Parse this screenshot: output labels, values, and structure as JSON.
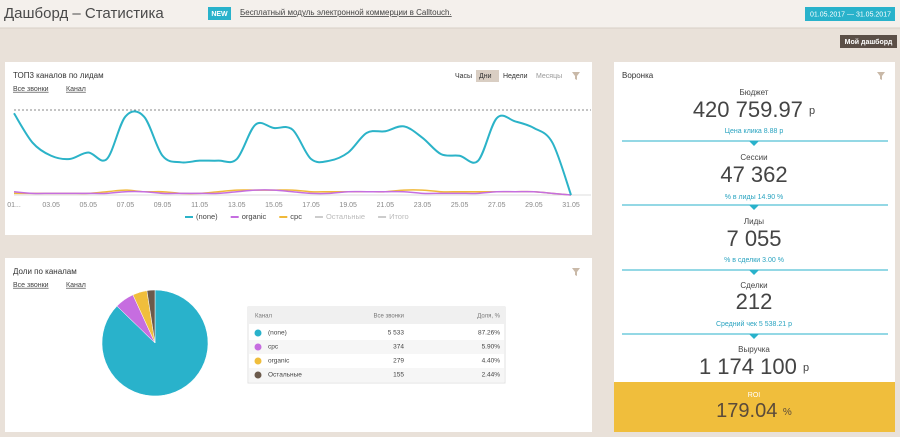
{
  "header": {
    "title": "Дашборд – Статистика",
    "badge": "NEW",
    "news": "Бесплатный модуль электронной коммерции в Calltouch.",
    "date_from": "01.05.2017",
    "date_separator": "—",
    "date_to": "31.05.2017",
    "button": "Мой дашборд"
  },
  "chart_data": [
    {
      "type": "line",
      "title": "ТОП3 каналов по лидам",
      "filters": [
        "Все звонки",
        "Канал"
      ],
      "periods": [
        "Часы",
        "Дни",
        "Недели",
        "Месяцы"
      ],
      "active_period_index": 1,
      "categories": [
        "01...",
        null,
        "03.05",
        null,
        "05.05",
        null,
        "07.05",
        null,
        "09.05",
        null,
        "11.05",
        null,
        "13.05",
        null,
        "15.05",
        null,
        "17.05",
        null,
        "19.05",
        null,
        "21.05",
        null,
        "23.05",
        null,
        "25.05",
        null,
        "27.05",
        null,
        "29.05",
        null,
        "31.05"
      ],
      "ylim": [
        0,
        52
      ],
      "series": [
        {
          "name": "(none)",
          "color": "#2bb3c8",
          "values": [
            50,
            32,
            24,
            22,
            26,
            22,
            48,
            48,
            24,
            20,
            21,
            21,
            22,
            43,
            41,
            40,
            22,
            21,
            26,
            38,
            39,
            42,
            35,
            25,
            24,
            21,
            47,
            45,
            41,
            32,
            0
          ]
        },
        {
          "name": "organic",
          "color": "#c56ee0",
          "values": [
            2,
            1,
            1,
            1,
            1,
            1,
            2,
            2,
            1,
            1,
            1,
            1,
            2,
            3,
            3,
            2,
            1,
            1,
            2,
            2,
            2,
            2,
            1,
            1,
            1,
            1,
            2,
            2,
            2,
            1,
            0
          ]
        },
        {
          "name": "cpc",
          "color": "#f0b93a",
          "values": [
            1,
            1,
            1,
            1,
            1,
            2,
            3,
            2,
            2,
            1,
            1,
            2,
            3,
            3,
            3,
            3,
            2,
            2,
            2,
            2,
            2,
            3,
            3,
            2,
            2,
            2,
            2,
            2,
            2,
            1,
            0
          ]
        }
      ],
      "inactive_legend": [
        "Остальные",
        "Итого"
      ]
    },
    {
      "type": "pie",
      "title": "Доли по каналам",
      "filters": [
        "Все звонки",
        "Канал"
      ],
      "columns": [
        "Канал",
        "Все звонки",
        "Доля, %"
      ],
      "categories": [
        "(none)",
        "cpc",
        "organic",
        "Остальные"
      ],
      "colors": [
        "#29b2cb",
        "#c66de0",
        "#f0be3c",
        "#6b5a4c"
      ],
      "calls": [
        "5 533",
        "374",
        "279",
        "155"
      ],
      "values": [
        87.26,
        5.9,
        4.4,
        2.44
      ],
      "value_labels": [
        "87.26%",
        "5.90%",
        "4.40%",
        "2.44%"
      ]
    }
  ],
  "funnel": {
    "title": "Воронка",
    "steps": [
      {
        "label": "Бюджет",
        "value": "420 759.97",
        "unit": "р",
        "note": "Цена клика 8.88 р"
      },
      {
        "label": "Сессии",
        "value": "47 362",
        "note": "% в лиды 14.90 %"
      },
      {
        "label": "Лиды",
        "value": "7 055",
        "note": "% в сделки 3.00 %"
      },
      {
        "label": "Сделки",
        "value": "212",
        "note": "Средний чек 5 538.21 р"
      },
      {
        "label": "Выручка",
        "value": "1 174 100",
        "unit": "р"
      }
    ],
    "roi": {
      "label": "ROI",
      "value": "179.04",
      "unit": "%"
    }
  }
}
